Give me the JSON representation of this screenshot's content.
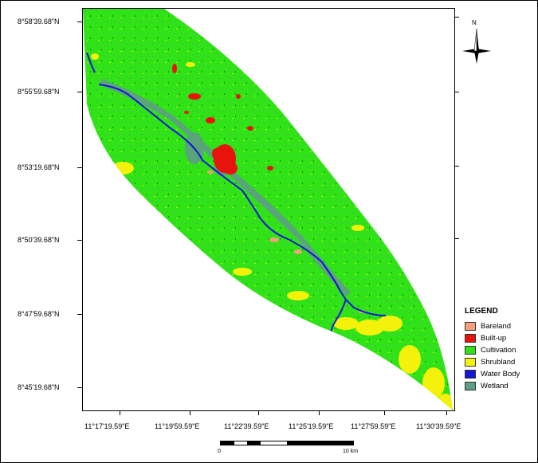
{
  "map": {
    "lat_labels": [
      "8°58'39.68\"N",
      "8°55'59.68\"N",
      "8°53'19.68\"N",
      "8°50'39.68\"N",
      "8°47'59.68\"N",
      "8°45'19.68\"N"
    ],
    "lon_labels": [
      "11°17'19.59\"E",
      "11°19'59.59\"E",
      "11°22'39.59\"E",
      "11°25'19.59\"E",
      "11°27'59.59\"E",
      "11°30'39.59\"E"
    ],
    "north_label": "N",
    "scale": {
      "start": "0",
      "end": "10 km"
    }
  },
  "legend": {
    "title": "LEGEND",
    "items": [
      {
        "label": "Bareland",
        "color": "#f4a07a"
      },
      {
        "label": "Built-up",
        "color": "#e8140c"
      },
      {
        "label": "Cultivation",
        "color": "#2fe316"
      },
      {
        "label": "Shrubland",
        "color": "#f4f20a"
      },
      {
        "label": "Water Body",
        "color": "#1515d6"
      },
      {
        "label": "Wetland",
        "color": "#5f9e86"
      }
    ]
  }
}
